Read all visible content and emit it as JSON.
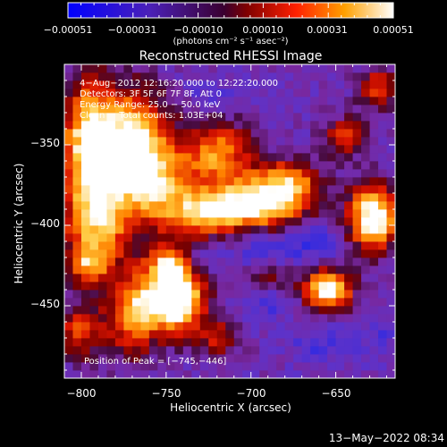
{
  "chart_data": {
    "type": "heatmap",
    "title": "Reconstructed RHESSI Image",
    "xlabel": "Heliocentric X (arcsec)",
    "ylabel": "Heliocentric Y (arcsec)",
    "xlim": [
      -810,
      -615
    ],
    "ylim": [
      -495,
      -300
    ],
    "x_ticks": [
      -800,
      -750,
      -700,
      -650
    ],
    "x_tick_labels": [
      "−800",
      "−750",
      "−700",
      "−650"
    ],
    "y_ticks": [
      -450,
      -400,
      -350
    ],
    "y_tick_labels": [
      "−450",
      "−400",
      "−350"
    ],
    "colorbar": {
      "range": [
        -0.00051,
        0.00051
      ],
      "tick_labels": [
        "−0.00051",
        "−0.00031",
        "−0.00010",
        "0.00010",
        "0.00031",
        "0.00051"
      ],
      "unit_label": "(photons cm⁻² s⁻¹ asec⁻²)"
    },
    "annotations": [
      "4−Aug−2012 12:16:20.000 to 12:22:20.000",
      "Detectors: 3F 5F 6F 7F 8F, Att 0",
      "Energy Range: 25.0 − 50.0 keV",
      "Clean     Total counts: 1.03E+04",
      "Position of Peak = [−745,−446]"
    ],
    "peak": [
      -745,
      -446
    ],
    "blobs": [
      {
        "x": -795,
        "y": -350,
        "sx": 12,
        "sy": 28,
        "a": 0.75
      },
      {
        "x": -768,
        "y": -345,
        "sx": 14,
        "sy": 20,
        "a": 0.7
      },
      {
        "x": -760,
        "y": -372,
        "sx": 16,
        "sy": 14,
        "a": 0.55
      },
      {
        "x": -790,
        "y": -400,
        "sx": 14,
        "sy": 18,
        "a": 0.55
      },
      {
        "x": -738,
        "y": -395,
        "sx": 18,
        "sy": 12,
        "a": 0.4
      },
      {
        "x": -720,
        "y": -355,
        "sx": 14,
        "sy": 14,
        "a": 0.55
      },
      {
        "x": -700,
        "y": -388,
        "sx": 22,
        "sy": 10,
        "a": 0.8
      },
      {
        "x": -680,
        "y": -372,
        "sx": 14,
        "sy": 9,
        "a": 0.55
      },
      {
        "x": -628,
        "y": -395,
        "sx": 10,
        "sy": 14,
        "a": 0.85
      },
      {
        "x": -645,
        "y": -345,
        "sx": 8,
        "sy": 8,
        "a": 0.45
      },
      {
        "x": -745,
        "y": -446,
        "sx": 12,
        "sy": 14,
        "a": 1.0
      },
      {
        "x": -770,
        "y": -455,
        "sx": 10,
        "sy": 18,
        "a": 0.55
      },
      {
        "x": -748,
        "y": -425,
        "sx": 9,
        "sy": 8,
        "a": 0.55
      },
      {
        "x": -655,
        "y": -440,
        "sx": 10,
        "sy": 9,
        "a": 0.8
      },
      {
        "x": -690,
        "y": -432,
        "sx": 10,
        "sy": 8,
        "a": 0.35
      },
      {
        "x": -720,
        "y": -470,
        "sx": 8,
        "sy": 8,
        "a": 0.35
      },
      {
        "x": -800,
        "y": -465,
        "sx": 10,
        "sy": 12,
        "a": 0.4
      },
      {
        "x": -625,
        "y": -315,
        "sx": 8,
        "sy": 8,
        "a": 0.45
      },
      {
        "x": -795,
        "y": -425,
        "sx": 8,
        "sy": 8,
        "a": 0.45
      }
    ],
    "holes": [
      {
        "x": -690,
        "y": -415,
        "sx": 16,
        "sy": 10,
        "a": 0.8
      },
      {
        "x": -690,
        "y": -445,
        "sx": 12,
        "sy": 10,
        "a": 0.7
      },
      {
        "x": -660,
        "y": -410,
        "sx": 10,
        "sy": 8,
        "a": 0.7
      },
      {
        "x": -730,
        "y": -420,
        "sx": 8,
        "sy": 8,
        "a": 0.55
      },
      {
        "x": -720,
        "y": -320,
        "sx": 12,
        "sy": 8,
        "a": 0.55
      },
      {
        "x": -660,
        "y": -475,
        "sx": 12,
        "sy": 10,
        "a": 0.6
      },
      {
        "x": -625,
        "y": -470,
        "sx": 8,
        "sy": 10,
        "a": 0.5
      }
    ]
  },
  "footer": {
    "timestamp": "13−May−2022 08:34"
  }
}
